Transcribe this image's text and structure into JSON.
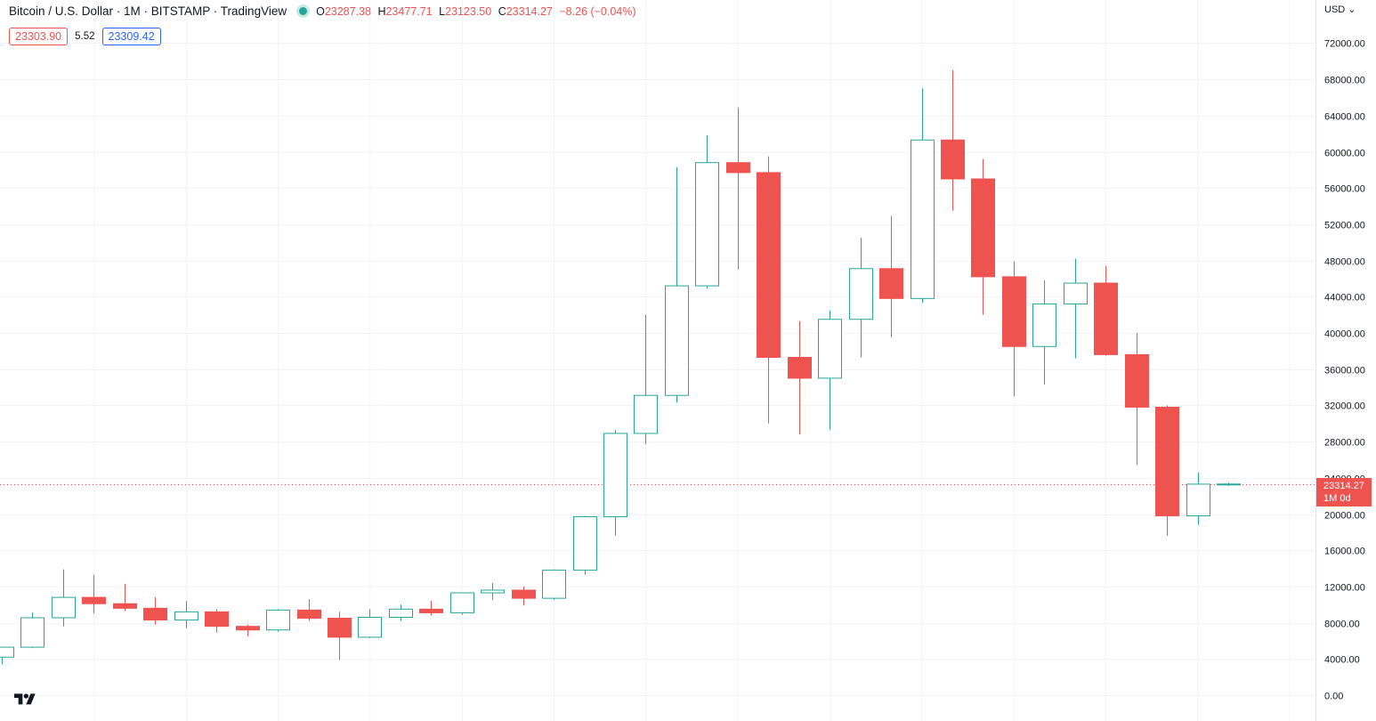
{
  "header": {
    "title": "Bitcoin / U.S. Dollar · 1M · BITSTAMP · TradingView",
    "ohlc": [
      {
        "key": "O",
        "value": "23287.38"
      },
      {
        "key": "H",
        "value": "23477.71"
      },
      {
        "key": "L",
        "value": "23123.50"
      },
      {
        "key": "C",
        "value": "23314.27"
      }
    ],
    "change": "−8.26 (−0.04%)"
  },
  "bidask": {
    "bid": "23303.90",
    "spread": "5.52",
    "ask": "23309.42"
  },
  "currency": "USD ⌄",
  "last_price_tag": {
    "price": "23314.27",
    "countdown": "1M 0d"
  },
  "colors": {
    "up": "#26a69a",
    "down": "#ef5350",
    "grid": "#f0f3fa",
    "text": "#131722"
  },
  "chart_data": {
    "type": "candlestick",
    "symbol": "Bitcoin / U.S. Dollar",
    "interval": "1M",
    "exchange": "BITSTAMP",
    "ylim": [
      0,
      75000
    ],
    "y_ticks": [
      "0.00",
      "4000.00",
      "8000.00",
      "12000.00",
      "16000.00",
      "20000.00",
      "24000.00",
      "28000.00",
      "32000.00",
      "36000.00",
      "40000.00",
      "44000.00",
      "48000.00",
      "52000.00",
      "56000.00",
      "60000.00",
      "64000.00",
      "68000.00",
      "72000.00"
    ],
    "last_price": 23314.27,
    "candles": [
      {
        "o": 4200,
        "h": 4800,
        "l": 3400,
        "c": 5300
      },
      {
        "o": 5300,
        "h": 9100,
        "l": 5200,
        "c": 8550
      },
      {
        "o": 8550,
        "h": 13900,
        "l": 7600,
        "c": 10800
      },
      {
        "o": 10800,
        "h": 13300,
        "l": 9000,
        "c": 10100
      },
      {
        "o": 10100,
        "h": 12300,
        "l": 9300,
        "c": 9600
      },
      {
        "o": 9600,
        "h": 10800,
        "l": 7800,
        "c": 8300
      },
      {
        "o": 8300,
        "h": 10400,
        "l": 7400,
        "c": 9200
      },
      {
        "o": 9200,
        "h": 9500,
        "l": 6900,
        "c": 7600
      },
      {
        "o": 7600,
        "h": 7800,
        "l": 6500,
        "c": 7200
      },
      {
        "o": 7200,
        "h": 9500,
        "l": 7000,
        "c": 9400
      },
      {
        "o": 9400,
        "h": 10600,
        "l": 8200,
        "c": 8500
      },
      {
        "o": 8500,
        "h": 9200,
        "l": 3900,
        "c": 6400
      },
      {
        "o": 6400,
        "h": 9500,
        "l": 6300,
        "c": 8600
      },
      {
        "o": 8600,
        "h": 10000,
        "l": 8200,
        "c": 9500
      },
      {
        "o": 9500,
        "h": 10400,
        "l": 8800,
        "c": 9100
      },
      {
        "o": 9100,
        "h": 11300,
        "l": 8900,
        "c": 11300
      },
      {
        "o": 11300,
        "h": 12400,
        "l": 10500,
        "c": 11600
      },
      {
        "o": 11600,
        "h": 12000,
        "l": 9900,
        "c": 10700
      },
      {
        "o": 10700,
        "h": 13900,
        "l": 10500,
        "c": 13800
      },
      {
        "o": 13800,
        "h": 19800,
        "l": 13300,
        "c": 19700
      },
      {
        "o": 19700,
        "h": 29300,
        "l": 17600,
        "c": 28900
      },
      {
        "o": 28900,
        "h": 42000,
        "l": 27700,
        "c": 33100
      },
      {
        "o": 33100,
        "h": 58300,
        "l": 32300,
        "c": 45200
      },
      {
        "o": 45200,
        "h": 61800,
        "l": 44900,
        "c": 58800
      },
      {
        "o": 58800,
        "h": 64900,
        "l": 47000,
        "c": 57700
      },
      {
        "o": 57700,
        "h": 59500,
        "l": 30000,
        "c": 37300
      },
      {
        "o": 37300,
        "h": 41300,
        "l": 28800,
        "c": 35000
      },
      {
        "o": 35000,
        "h": 42500,
        "l": 29300,
        "c": 41500
      },
      {
        "o": 41500,
        "h": 50500,
        "l": 37300,
        "c": 47100
      },
      {
        "o": 47100,
        "h": 52900,
        "l": 39500,
        "c": 43800
      },
      {
        "o": 43800,
        "h": 67000,
        "l": 43300,
        "c": 61300
      },
      {
        "o": 61300,
        "h": 69000,
        "l": 53500,
        "c": 57000
      },
      {
        "o": 57000,
        "h": 59200,
        "l": 42000,
        "c": 46200
      },
      {
        "o": 46200,
        "h": 47900,
        "l": 33000,
        "c": 38500
      },
      {
        "o": 38500,
        "h": 45800,
        "l": 34300,
        "c": 43200
      },
      {
        "o": 43200,
        "h": 48200,
        "l": 37200,
        "c": 45500
      },
      {
        "o": 45500,
        "h": 47400,
        "l": 37500,
        "c": 37600
      },
      {
        "o": 37600,
        "h": 40000,
        "l": 25400,
        "c": 31800
      },
      {
        "o": 31800,
        "h": 32000,
        "l": 17600,
        "c": 19800
      },
      {
        "o": 19800,
        "h": 24600,
        "l": 18800,
        "c": 23300
      },
      {
        "o": 23287.38,
        "h": 23477.71,
        "l": 23123.5,
        "c": 23314.27
      }
    ]
  }
}
